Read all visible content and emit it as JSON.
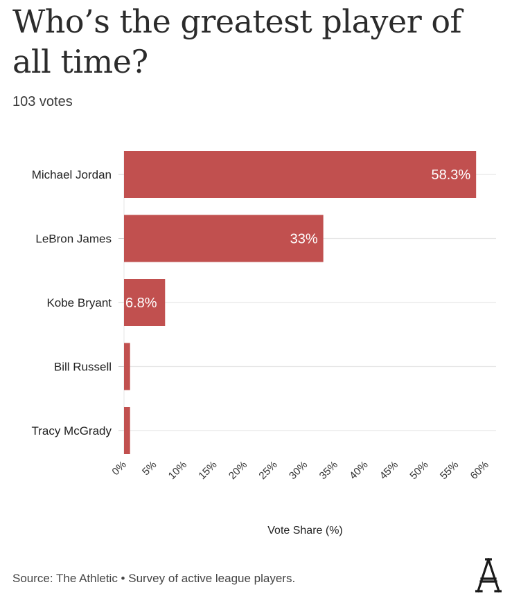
{
  "header": {
    "title": "Who’s the greatest player of all time?",
    "subtitle": "103 votes"
  },
  "footer": {
    "source": "Source: The Athletic • Survey of active league players.",
    "logo_name": "the-athletic-logo"
  },
  "colors": {
    "bar": "#c1504f",
    "grid": "#e6e6e6",
    "value_label": "#ffffff"
  },
  "chart_data": {
    "type": "bar",
    "orientation": "horizontal",
    "categories": [
      "Michael Jordan",
      "LeBron James",
      "Kobe Bryant",
      "Bill Russell",
      "Tracy McGrady"
    ],
    "values": [
      58.3,
      33,
      6.8,
      1,
      1
    ],
    "data_labels": [
      "58.3%",
      "33%",
      "6.8%",
      "",
      ""
    ],
    "xlabel": "Vote Share (%)",
    "xlim": [
      0,
      60
    ],
    "xticks": [
      "0%",
      "5%",
      "10%",
      "15%",
      "20%",
      "25%",
      "30%",
      "35%",
      "40%",
      "45%",
      "50%",
      "55%",
      "60%"
    ],
    "grid": true
  }
}
